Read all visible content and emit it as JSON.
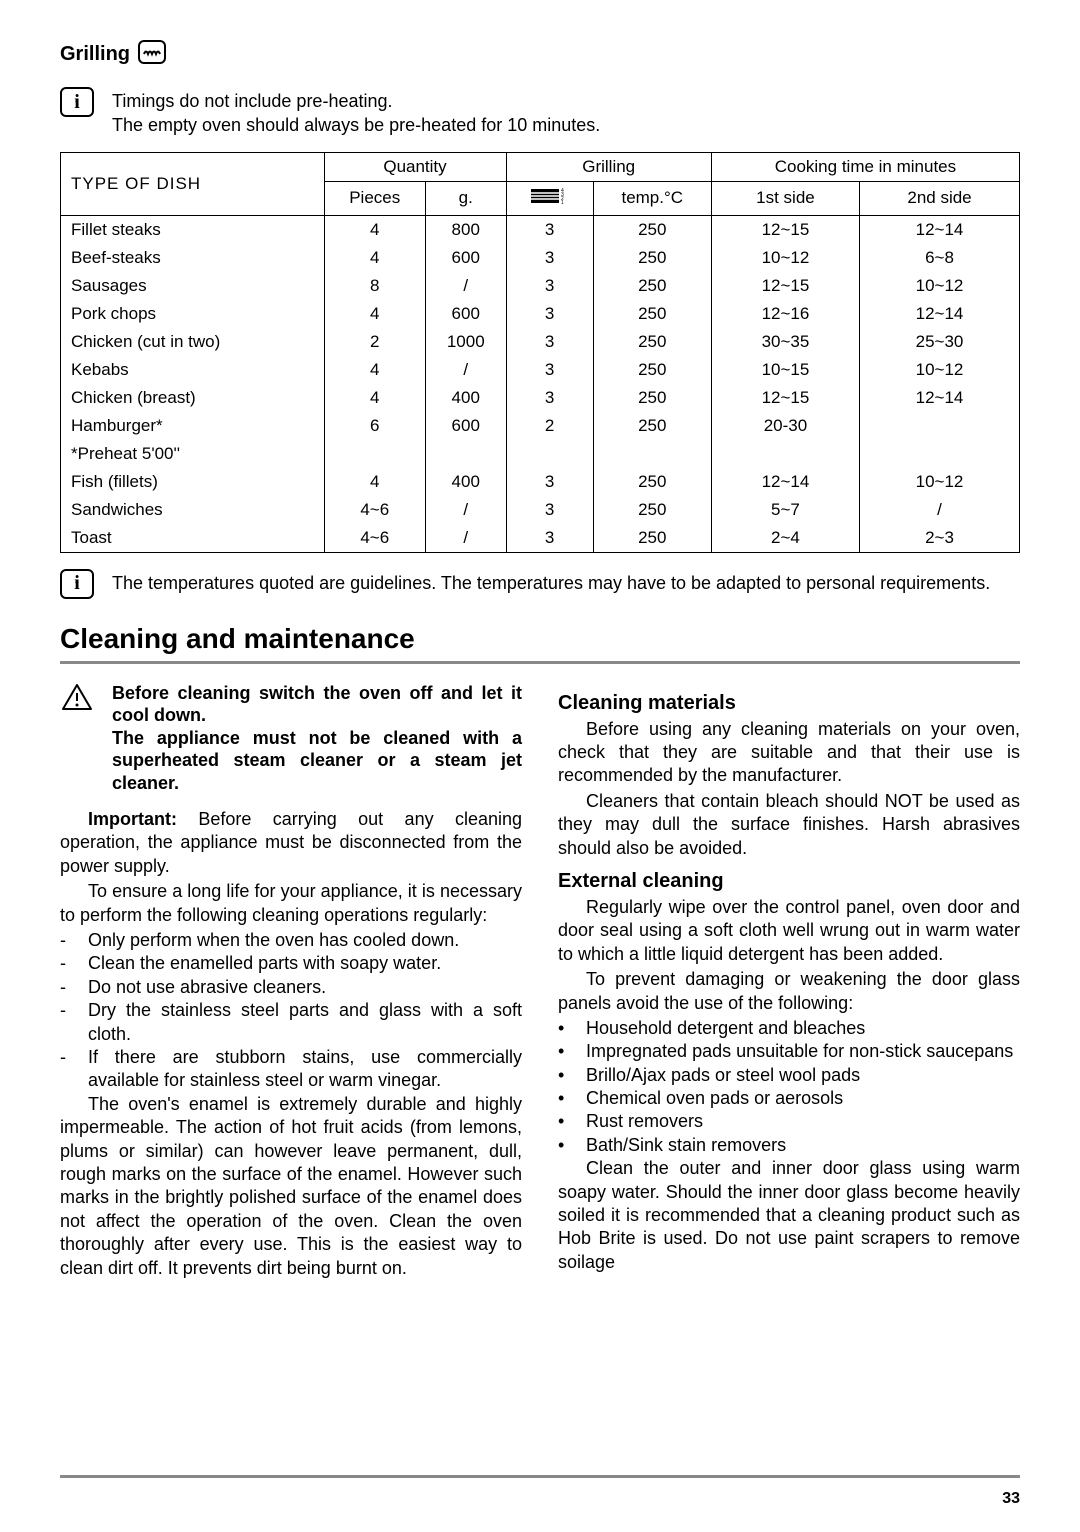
{
  "grill_section": {
    "title": "Grilling",
    "info1_line1": "Timings do not include pre-heating.",
    "info1_line2": "The empty oven should always be pre-heated for 10 minutes.",
    "info2": "The temperatures quoted are guidelines. The temperatures may have to be adapted to personal requirements."
  },
  "table": {
    "headers": {
      "dish": "TYPE  OF  DISH",
      "quantity": "Quantity",
      "pieces": "Pieces",
      "grams": "g.",
      "grilling": "Grilling",
      "temp": "temp.°C",
      "cooktime": "Cooking time in minutes",
      "side1": "1st side",
      "side2": "2nd side"
    },
    "rows": [
      {
        "dish": "Fillet steaks",
        "pieces": "4",
        "g": "800",
        "shelf": "3",
        "temp": "250",
        "s1": "12~15",
        "s2": "12~14"
      },
      {
        "dish": "Beef-steaks",
        "pieces": "4",
        "g": "600",
        "shelf": "3",
        "temp": "250",
        "s1": "10~12",
        "s2": "6~8"
      },
      {
        "dish": "Sausages",
        "pieces": "8",
        "g": "/",
        "shelf": "3",
        "temp": "250",
        "s1": "12~15",
        "s2": "10~12"
      },
      {
        "dish": "Pork chops",
        "pieces": "4",
        "g": "600",
        "shelf": "3",
        "temp": "250",
        "s1": "12~16",
        "s2": "12~14"
      },
      {
        "dish": "Chicken  (cut in two)",
        "pieces": "2",
        "g": "1000",
        "shelf": "3",
        "temp": "250",
        "s1": "30~35",
        "s2": "25~30"
      },
      {
        "dish": "Kebabs",
        "pieces": "4",
        "g": "/",
        "shelf": "3",
        "temp": "250",
        "s1": "10~15",
        "s2": "10~12"
      },
      {
        "dish": "Chicken (breast)",
        "pieces": "4",
        "g": "400",
        "shelf": "3",
        "temp": "250",
        "s1": "12~15",
        "s2": "12~14"
      },
      {
        "dish": "Hamburger*",
        "pieces": "6",
        "g": "600",
        "shelf": "2",
        "temp": "250",
        "s1": "20-30",
        "s2": ""
      },
      {
        "dish": "*Preheat 5'00''",
        "pieces": "",
        "g": "",
        "shelf": "",
        "temp": "",
        "s1": "",
        "s2": "",
        "small": true
      },
      {
        "dish": "Fish (fillets)",
        "pieces": "4",
        "g": "400",
        "shelf": "3",
        "temp": "250",
        "s1": "12~14",
        "s2": "10~12"
      },
      {
        "dish": "Sandwiches",
        "pieces": "4~6",
        "g": "/",
        "shelf": "3",
        "temp": "250",
        "s1": "5~7",
        "s2": "/"
      },
      {
        "dish": "Toast",
        "pieces": "4~6",
        "g": "/",
        "shelf": "3",
        "temp": "250",
        "s1": "2~4",
        "s2": "2~3"
      }
    ]
  },
  "maint": {
    "heading": "Cleaning and maintenance",
    "warn1": "Before cleaning switch the oven off and let it cool down.",
    "warn2": "The appliance must not be cleaned with a superheated steam cleaner or a steam jet cleaner.",
    "important_label": "Important:",
    "important_text": " Before carrying out any cleaning operation, the appliance must be disconnected from the power supply.",
    "longlife": "To ensure a long life for your appliance, it is necessary to perform the following cleaning operations regularly:",
    "dash_items": [
      "Only perform when the oven has cooled down.",
      "Clean the enamelled parts with soapy water.",
      "Do not use abrasive cleaners.",
      "Dry the stainless steel parts and glass with a soft cloth.",
      "If there are stubborn stains, use commercially available for stainless steel or warm vinegar."
    ],
    "enamel": "The oven's enamel is extremely durable and highly impermeable. The action of hot fruit acids (from lemons, plums or similar) can however leave permanent, dull, rough marks on the surface of the enamel. However such marks in the brightly polished surface of the enamel does not affect the operation of the oven. Clean the oven thoroughly after every use. This is the easiest way to clean dirt off. It prevents dirt being burnt on.",
    "cm_head": "Cleaning materials",
    "cm_p1": "Before using any cleaning materials on your oven, check that they are suitable and that their use is recommended by the manufacturer.",
    "cm_p2": "Cleaners that contain bleach should NOT be used as they may dull the surface finishes. Harsh abrasives should also be avoided.",
    "ec_head": "External cleaning",
    "ec_p1": "Regularly wipe over the control panel, oven door and door seal using a soft cloth well wrung out in warm water to which a little liquid detergent has been added.",
    "ec_p2": "To prevent damaging or weakening the door glass panels avoid the use of the following:",
    "ec_bullets": [
      "Household detergent and bleaches",
      "Impregnated pads unsuitable for non-stick saucepans",
      "Brillo/Ajax pads or steel wool pads",
      "Chemical oven pads or aerosols",
      "Rust removers",
      "Bath/Sink stain removers"
    ],
    "ec_p3": "Clean the outer and inner door glass using warm soapy water. Should the inner door glass become heavily soiled it is recommended that a cleaning product such as Hob Brite is used. Do not use paint scrapers to remove soilage"
  },
  "page": "33"
}
